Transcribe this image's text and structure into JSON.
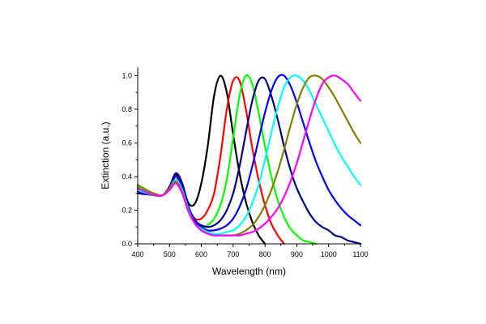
{
  "chart_data": {
    "type": "line",
    "title": "",
    "xlabel": "Wavelength (nm)",
    "ylabel": "Extinction (a.u.)",
    "xlim": [
      400,
      1100
    ],
    "ylim": [
      0.0,
      1.05
    ],
    "x_ticks": [
      400,
      500,
      600,
      700,
      800,
      900,
      1000,
      1100
    ],
    "x_tick_labels": [
      "400",
      "500",
      "600",
      "700",
      "800",
      "900",
      "1000",
      "1100"
    ],
    "y_ticks": [
      0.0,
      0.2,
      0.4,
      0.6,
      0.8,
      1.0
    ],
    "y_tick_labels": [
      "0.0",
      "0.2",
      "0.4",
      "0.6",
      "0.8",
      "1.0"
    ],
    "grid": false,
    "legend": "none",
    "series": [
      {
        "name": "black",
        "color": "#000000",
        "x": [
          400,
          450,
          480,
          500,
          520,
          540,
          560,
          580,
          600,
          620,
          640,
          660,
          680,
          700,
          720,
          740,
          760,
          780,
          800
        ],
        "y": [
          0.32,
          0.29,
          0.29,
          0.34,
          0.41,
          0.35,
          0.24,
          0.24,
          0.36,
          0.58,
          0.88,
          1.0,
          0.9,
          0.65,
          0.42,
          0.25,
          0.13,
          0.05,
          0.0
        ]
      },
      {
        "name": "red",
        "color": "#ff0000",
        "x": [
          400,
          450,
          480,
          500,
          520,
          540,
          560,
          580,
          600,
          620,
          640,
          660,
          680,
          700,
          720,
          740,
          760,
          780,
          800,
          820,
          840,
          860
        ],
        "y": [
          0.33,
          0.29,
          0.29,
          0.34,
          0.4,
          0.32,
          0.21,
          0.15,
          0.15,
          0.2,
          0.3,
          0.52,
          0.8,
          0.97,
          0.97,
          0.8,
          0.57,
          0.38,
          0.23,
          0.12,
          0.05,
          0.0
        ]
      },
      {
        "name": "green",
        "color": "#00ff00",
        "x": [
          400,
          450,
          480,
          500,
          520,
          540,
          560,
          580,
          600,
          620,
          640,
          660,
          680,
          700,
          720,
          740,
          760,
          780,
          800,
          820,
          840,
          860,
          880,
          900,
          920,
          940,
          960
        ],
        "y": [
          0.34,
          0.3,
          0.29,
          0.33,
          0.38,
          0.3,
          0.19,
          0.13,
          0.1,
          0.11,
          0.15,
          0.23,
          0.38,
          0.63,
          0.88,
          1.0,
          0.95,
          0.78,
          0.58,
          0.4,
          0.26,
          0.16,
          0.09,
          0.05,
          0.02,
          0.01,
          0.0
        ]
      },
      {
        "name": "navy",
        "color": "#000080",
        "x": [
          400,
          450,
          480,
          500,
          520,
          540,
          560,
          580,
          600,
          620,
          640,
          660,
          680,
          700,
          720,
          740,
          760,
          780,
          800,
          820,
          840,
          860,
          880,
          900,
          920,
          940,
          960,
          980,
          1000,
          1020,
          1040,
          1060,
          1080,
          1100
        ],
        "y": [
          0.3,
          0.29,
          0.29,
          0.34,
          0.42,
          0.36,
          0.22,
          0.14,
          0.11,
          0.1,
          0.11,
          0.14,
          0.2,
          0.3,
          0.46,
          0.66,
          0.85,
          0.97,
          0.98,
          0.88,
          0.74,
          0.58,
          0.44,
          0.33,
          0.25,
          0.18,
          0.13,
          0.1,
          0.08,
          0.05,
          0.04,
          0.02,
          0.01,
          0.0
        ]
      },
      {
        "name": "blue",
        "color": "#0000ff",
        "x": [
          400,
          450,
          480,
          500,
          520,
          540,
          560,
          580,
          600,
          620,
          640,
          660,
          680,
          700,
          720,
          740,
          760,
          780,
          800,
          820,
          840,
          860,
          880,
          900,
          920,
          940,
          960,
          980,
          1000,
          1020,
          1040,
          1060,
          1080,
          1100
        ],
        "y": [
          0.31,
          0.29,
          0.29,
          0.33,
          0.4,
          0.34,
          0.21,
          0.13,
          0.1,
          0.08,
          0.08,
          0.09,
          0.11,
          0.15,
          0.22,
          0.32,
          0.46,
          0.62,
          0.78,
          0.91,
          0.99,
          1.0,
          0.94,
          0.84,
          0.72,
          0.6,
          0.49,
          0.4,
          0.32,
          0.26,
          0.21,
          0.17,
          0.14,
          0.11
        ]
      },
      {
        "name": "cyan",
        "color": "#00ffff",
        "x": [
          400,
          450,
          480,
          500,
          520,
          540,
          560,
          580,
          600,
          620,
          640,
          660,
          680,
          700,
          720,
          740,
          760,
          780,
          800,
          820,
          840,
          860,
          880,
          900,
          920,
          940,
          960,
          980,
          1000,
          1020,
          1040,
          1060,
          1080,
          1100
        ],
        "y": [
          0.32,
          0.29,
          0.29,
          0.33,
          0.38,
          0.32,
          0.2,
          0.12,
          0.09,
          0.07,
          0.06,
          0.06,
          0.07,
          0.08,
          0.11,
          0.16,
          0.24,
          0.35,
          0.5,
          0.66,
          0.81,
          0.93,
          0.99,
          1.0,
          0.97,
          0.91,
          0.83,
          0.75,
          0.67,
          0.59,
          0.52,
          0.46,
          0.4,
          0.35
        ]
      },
      {
        "name": "olive",
        "color": "#808000",
        "x": [
          400,
          450,
          480,
          500,
          520,
          540,
          560,
          580,
          600,
          620,
          640,
          660,
          680,
          700,
          720,
          740,
          760,
          780,
          800,
          820,
          840,
          860,
          880,
          900,
          920,
          940,
          960,
          980,
          1000,
          1020,
          1040,
          1060,
          1080,
          1100
        ],
        "y": [
          0.35,
          0.3,
          0.29,
          0.33,
          0.37,
          0.31,
          0.19,
          0.12,
          0.08,
          0.06,
          0.05,
          0.05,
          0.05,
          0.05,
          0.06,
          0.08,
          0.11,
          0.16,
          0.23,
          0.32,
          0.43,
          0.56,
          0.7,
          0.83,
          0.93,
          0.99,
          1.0,
          0.98,
          0.93,
          0.87,
          0.8,
          0.73,
          0.66,
          0.6
        ]
      },
      {
        "name": "magenta",
        "color": "#ff00ff",
        "x": [
          400,
          450,
          480,
          500,
          520,
          540,
          560,
          580,
          600,
          620,
          640,
          660,
          680,
          700,
          720,
          740,
          760,
          780,
          800,
          820,
          840,
          860,
          880,
          900,
          920,
          940,
          960,
          980,
          1000,
          1020,
          1040,
          1060,
          1080,
          1100
        ],
        "y": [
          0.33,
          0.29,
          0.29,
          0.32,
          0.36,
          0.3,
          0.19,
          0.12,
          0.08,
          0.06,
          0.05,
          0.05,
          0.05,
          0.05,
          0.05,
          0.06,
          0.07,
          0.09,
          0.12,
          0.16,
          0.21,
          0.28,
          0.37,
          0.48,
          0.61,
          0.74,
          0.86,
          0.95,
          0.99,
          1.0,
          0.98,
          0.95,
          0.9,
          0.85
        ]
      }
    ]
  }
}
